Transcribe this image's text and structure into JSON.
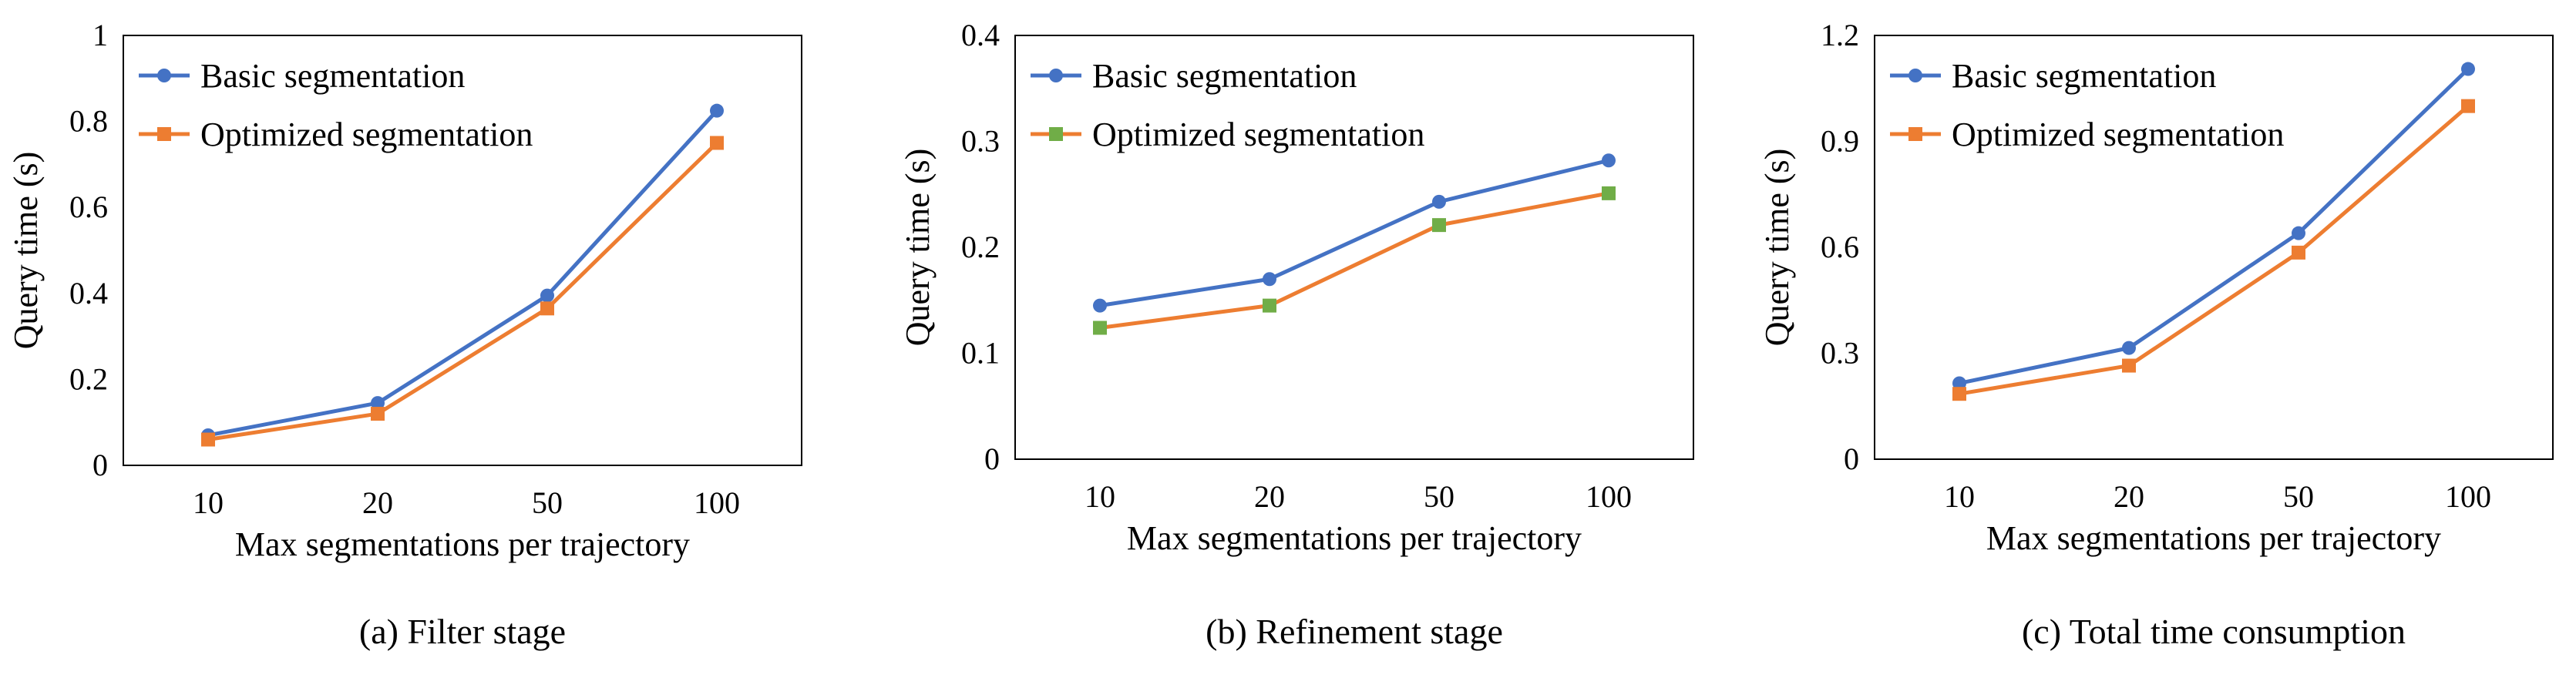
{
  "chart_data": [
    {
      "type": "line",
      "caption": "(a) Filter stage",
      "xlabel": "Max segmentations per trajectory",
      "ylabel": "Query time (s)",
      "categories": [
        "10",
        "20",
        "50",
        "100"
      ],
      "ylim": [
        0,
        1
      ],
      "yticks": [
        "0",
        "0.2",
        "0.4",
        "0.6",
        "0.8",
        "1"
      ],
      "legend_position": "top-left",
      "series": [
        {
          "name": "Basic segmentation",
          "color": "#4472C4",
          "marker": "circle",
          "marker_color": "#4472C4",
          "values": [
            0.07,
            0.145,
            0.395,
            0.825
          ]
        },
        {
          "name": "Optimized segmentation",
          "color": "#ED7D31",
          "marker": "square",
          "marker_color": "#ED7D31",
          "values": [
            0.06,
            0.12,
            0.365,
            0.75
          ]
        }
      ]
    },
    {
      "type": "line",
      "caption": "(b) Refinement stage",
      "xlabel": "Max segmentations per trajectory",
      "ylabel": "Query time (s)",
      "categories": [
        "10",
        "20",
        "50",
        "100"
      ],
      "ylim": [
        0,
        0.4
      ],
      "yticks": [
        "0",
        "0.1",
        "0.2",
        "0.3",
        "0.4"
      ],
      "legend_position": "top-left",
      "series": [
        {
          "name": "Basic segmentation",
          "color": "#4472C4",
          "marker": "circle",
          "marker_color": "#4472C4",
          "values": [
            0.145,
            0.17,
            0.243,
            0.282
          ]
        },
        {
          "name": "Optimized segmentation",
          "color": "#ED7D31",
          "marker": "square",
          "marker_color": "#70AD47",
          "values": [
            0.124,
            0.145,
            0.221,
            0.251
          ]
        }
      ]
    },
    {
      "type": "line",
      "caption": "(c) Total time consumption",
      "xlabel": "Max segmentations per trajectory",
      "ylabel": "Query time (s)",
      "categories": [
        "10",
        "20",
        "50",
        "100"
      ],
      "ylim": [
        0,
        1.2
      ],
      "yticks": [
        "0",
        "0.3",
        "0.6",
        "0.9",
        "1.2"
      ],
      "legend_position": "top-left",
      "series": [
        {
          "name": "Basic segmentation",
          "color": "#4472C4",
          "marker": "circle",
          "marker_color": "#4472C4",
          "values": [
            0.215,
            0.315,
            0.64,
            1.105
          ]
        },
        {
          "name": "Optimized segmentation",
          "color": "#ED7D31",
          "marker": "square",
          "marker_color": "#ED7D31",
          "values": [
            0.185,
            0.265,
            0.585,
            1.0
          ]
        }
      ]
    }
  ]
}
